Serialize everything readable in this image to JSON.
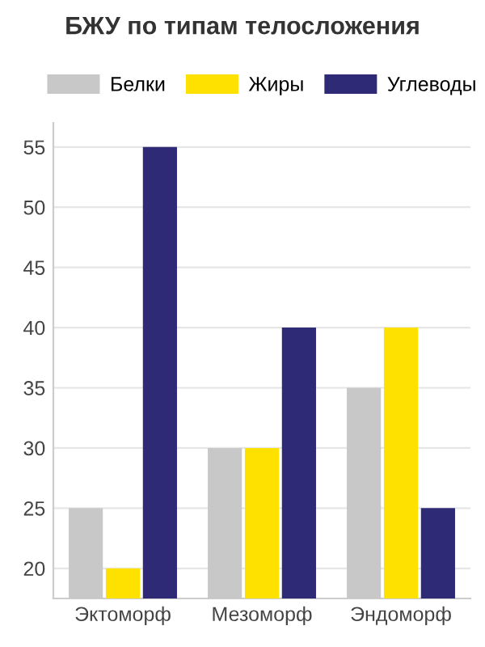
{
  "chart_data": {
    "type": "bar",
    "title": "БЖУ по типам телосложения",
    "categories": [
      "Эктоморф",
      "Мезоморф",
      "Эндоморф"
    ],
    "series": [
      {
        "name": "Белки",
        "color": "#c8c8c8",
        "values": [
          25,
          30,
          35
        ]
      },
      {
        "name": "Жиры",
        "color": "#ffe100",
        "values": [
          20,
          30,
          40
        ]
      },
      {
        "name": "Углеводы",
        "color": "#2e2a76",
        "values": [
          55,
          40,
          25
        ]
      }
    ],
    "ylim": [
      17.5,
      57
    ],
    "yticks": [
      20,
      25,
      30,
      35,
      40,
      45,
      50,
      55
    ],
    "grid": "y",
    "legend": "top"
  }
}
